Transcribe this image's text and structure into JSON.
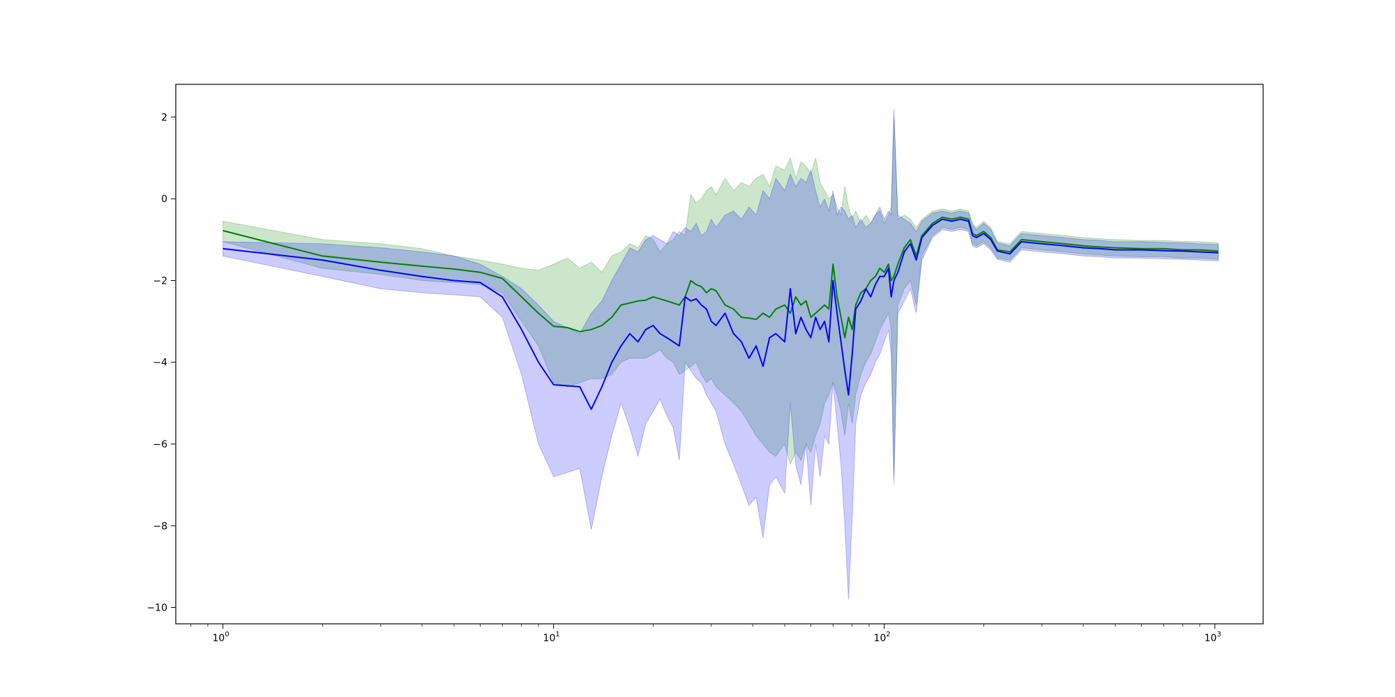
{
  "chart_data": {
    "type": "line",
    "title": "",
    "xlabel": "",
    "ylabel": "",
    "xscale": "log",
    "xlim": [
      0.72,
      1400
    ],
    "ylim": [
      -10.4,
      2.8
    ],
    "grid": false,
    "legend": "none",
    "x_ticks": [
      {
        "value": 1,
        "base": "10",
        "exp": "0"
      },
      {
        "value": 10,
        "base": "10",
        "exp": "1"
      },
      {
        "value": 100,
        "base": "10",
        "exp": "2"
      },
      {
        "value": 1000,
        "base": "10",
        "exp": "3"
      }
    ],
    "y_ticks": [
      {
        "value": 2,
        "label": "2"
      },
      {
        "value": 0,
        "label": "0"
      },
      {
        "value": -2,
        "label": "−2"
      },
      {
        "value": -4,
        "label": "−4"
      },
      {
        "value": -6,
        "label": "−6"
      },
      {
        "value": -8,
        "label": "−8"
      },
      {
        "value": -10,
        "label": "−10"
      }
    ],
    "series": [
      {
        "color": "#008000",
        "band_color": "#008000",
        "band_opacity": 0.2,
        "points": [
          [
            1,
            -0.78,
            -0.55,
            -1.05
          ],
          [
            2,
            -1.4,
            -1.0,
            -1.7
          ],
          [
            3,
            -1.55,
            -1.1,
            -1.85
          ],
          [
            4,
            -1.65,
            -1.22,
            -2.0
          ],
          [
            5,
            -1.72,
            -1.4,
            -2.05
          ],
          [
            6,
            -1.8,
            -1.5,
            -2.1
          ],
          [
            7,
            -1.95,
            -1.6,
            -2.3
          ],
          [
            8,
            -2.4,
            -1.7,
            -3.0
          ],
          [
            9,
            -2.8,
            -1.75,
            -3.6
          ],
          [
            10,
            -3.12,
            -1.6,
            -4.5
          ],
          [
            11,
            -3.15,
            -1.45,
            -4.6
          ],
          [
            12,
            -3.25,
            -1.7,
            -4.5
          ],
          [
            13,
            -3.2,
            -1.55,
            -4.4
          ],
          [
            14,
            -3.1,
            -1.8,
            -4.4
          ],
          [
            15,
            -2.9,
            -1.4,
            -4.3
          ],
          [
            16,
            -2.6,
            -1.3,
            -4.0
          ],
          [
            17,
            -2.55,
            -1.1,
            -3.9
          ],
          [
            18,
            -2.5,
            -1.2,
            -3.9
          ],
          [
            19,
            -2.48,
            -0.9,
            -3.9
          ],
          [
            20,
            -2.4,
            -1.0,
            -3.8
          ],
          [
            21,
            -2.45,
            -1.3,
            -3.7
          ],
          [
            22,
            -2.5,
            -1.1,
            -3.9
          ],
          [
            23,
            -2.55,
            -1.0,
            -4.0
          ],
          [
            24,
            -2.6,
            -0.8,
            -4.3
          ],
          [
            25,
            -2.4,
            -0.9,
            -4.2
          ],
          [
            26,
            -2.0,
            0.1,
            -4.1
          ],
          [
            27,
            -2.1,
            -0.1,
            -4.0
          ],
          [
            28,
            -2.15,
            0.0,
            -4.3
          ],
          [
            29,
            -2.3,
            0.2,
            -4.5
          ],
          [
            30,
            -2.2,
            0.3,
            -4.4
          ],
          [
            31,
            -2.25,
            0.1,
            -4.6
          ],
          [
            33,
            -2.6,
            0.5,
            -4.8
          ],
          [
            35,
            -2.7,
            0.2,
            -5.0
          ],
          [
            37,
            -2.9,
            0.4,
            -5.2
          ],
          [
            39,
            -2.92,
            0.3,
            -5.5
          ],
          [
            41,
            -2.95,
            0.5,
            -5.8
          ],
          [
            43,
            -2.8,
            0.6,
            -6.0
          ],
          [
            45,
            -2.9,
            0.3,
            -6.2
          ],
          [
            47,
            -2.7,
            0.8,
            -6.3
          ],
          [
            50,
            -2.6,
            0.7,
            -6.0
          ],
          [
            52,
            -2.8,
            1.0,
            -6.5
          ],
          [
            54,
            -2.4,
            0.5,
            -6.2
          ],
          [
            56,
            -2.6,
            0.9,
            -6.4
          ],
          [
            58,
            -2.5,
            0.8,
            -6.0
          ],
          [
            60,
            -2.9,
            0.6,
            -6.2
          ],
          [
            62,
            -2.8,
            1.0,
            -5.8
          ],
          [
            64,
            -2.7,
            0.4,
            -5.5
          ],
          [
            66,
            -2.6,
            0.2,
            -5.0
          ],
          [
            68,
            -2.7,
            0.0,
            -4.8
          ],
          [
            70,
            -1.6,
            0.1,
            -4.5
          ],
          [
            72,
            -2.4,
            -0.2,
            -4.8
          ],
          [
            74,
            -2.9,
            -0.4,
            -5.2
          ],
          [
            76,
            -3.4,
            0.3,
            -5.8
          ],
          [
            78,
            -2.9,
            -0.2,
            -5.0
          ],
          [
            80,
            -3.2,
            -0.5,
            -5.5
          ],
          [
            82,
            -2.6,
            -0.3,
            -4.8
          ],
          [
            85,
            -2.3,
            -0.6,
            -4.3
          ],
          [
            88,
            -2.2,
            -0.4,
            -4.0
          ],
          [
            91,
            -2.0,
            -0.6,
            -3.8
          ],
          [
            94,
            -1.9,
            -0.4,
            -3.5
          ],
          [
            97,
            -1.7,
            -0.3,
            -3.2
          ],
          [
            100,
            -1.8,
            -0.6,
            -3.0
          ],
          [
            103,
            -1.6,
            -0.4,
            -2.8
          ],
          [
            105,
            -2.0,
            -0.2,
            -3.2
          ],
          [
            107,
            -1.9,
            2.0,
            -6.8
          ],
          [
            110,
            -1.6,
            -0.5,
            -2.6
          ],
          [
            115,
            -1.2,
            -0.4,
            -2.2
          ],
          [
            120,
            -1.0,
            -0.5,
            -2.0
          ],
          [
            125,
            -1.4,
            -0.7,
            -2.6
          ],
          [
            130,
            -0.9,
            -0.5,
            -1.4
          ],
          [
            140,
            -0.6,
            -0.3,
            -0.9
          ],
          [
            150,
            -0.45,
            -0.25,
            -0.7
          ],
          [
            160,
            -0.5,
            -0.3,
            -0.75
          ],
          [
            170,
            -0.45,
            -0.25,
            -0.7
          ],
          [
            180,
            -0.5,
            -0.3,
            -0.75
          ],
          [
            185,
            -0.85,
            -0.6,
            -1.1
          ],
          [
            190,
            -0.9,
            -0.7,
            -1.15
          ],
          [
            200,
            -0.8,
            -0.55,
            -1.05
          ],
          [
            210,
            -0.95,
            -0.7,
            -1.2
          ],
          [
            220,
            -1.25,
            -1.05,
            -1.45
          ],
          [
            240,
            -1.3,
            -1.1,
            -1.5
          ],
          [
            260,
            -1.0,
            -0.8,
            -1.2
          ],
          [
            300,
            -1.05,
            -0.85,
            -1.25
          ],
          [
            350,
            -1.1,
            -0.9,
            -1.3
          ],
          [
            400,
            -1.15,
            -0.95,
            -1.35
          ],
          [
            450,
            -1.18,
            -0.98,
            -1.38
          ],
          [
            500,
            -1.2,
            -1.0,
            -1.4
          ],
          [
            600,
            -1.22,
            -1.02,
            -1.42
          ],
          [
            700,
            -1.22,
            -1.02,
            -1.42
          ],
          [
            800,
            -1.25,
            -1.05,
            -1.45
          ],
          [
            900,
            -1.25,
            -1.05,
            -1.45
          ],
          [
            1024,
            -1.28,
            -1.08,
            -1.48
          ]
        ]
      },
      {
        "color": "#0000ff",
        "band_color": "#0000ff",
        "band_opacity": 0.2,
        "points": [
          [
            1,
            -1.22,
            -1.05,
            -1.4
          ],
          [
            2,
            -1.5,
            -1.1,
            -1.9
          ],
          [
            3,
            -1.75,
            -1.2,
            -2.2
          ],
          [
            4,
            -1.9,
            -1.3,
            -2.3
          ],
          [
            5,
            -2.0,
            -1.4,
            -2.35
          ],
          [
            6,
            -2.05,
            -1.6,
            -2.4
          ],
          [
            7,
            -2.4,
            -1.9,
            -2.9
          ],
          [
            8,
            -3.2,
            -2.2,
            -4.3
          ],
          [
            9,
            -4.0,
            -2.6,
            -6.0
          ],
          [
            10,
            -4.55,
            -3.0,
            -6.8
          ],
          [
            12,
            -4.6,
            -3.3,
            -6.6
          ],
          [
            13,
            -5.15,
            -2.8,
            -8.1
          ],
          [
            14,
            -4.6,
            -2.5,
            -6.8
          ],
          [
            15,
            -4.0,
            -2.0,
            -5.8
          ],
          [
            16,
            -3.6,
            -1.6,
            -5.0
          ],
          [
            17,
            -3.3,
            -1.2,
            -5.6
          ],
          [
            18,
            -3.5,
            -1.3,
            -6.3
          ],
          [
            19,
            -3.2,
            -1.0,
            -5.5
          ],
          [
            20,
            -3.1,
            -0.9,
            -5.2
          ],
          [
            21,
            -3.3,
            -1.0,
            -4.9
          ],
          [
            22,
            -3.4,
            -1.1,
            -5.3
          ],
          [
            23,
            -3.5,
            -0.8,
            -5.6
          ],
          [
            24,
            -3.6,
            -0.9,
            -6.4
          ],
          [
            25,
            -2.4,
            -0.7,
            -4.0
          ],
          [
            26,
            -2.5,
            -0.8,
            -4.2
          ],
          [
            27,
            -2.45,
            -0.6,
            -4.4
          ],
          [
            28,
            -2.6,
            -0.9,
            -4.5
          ],
          [
            29,
            -2.7,
            -0.8,
            -4.8
          ],
          [
            30,
            -3.0,
            -0.5,
            -5.0
          ],
          [
            31,
            -3.1,
            -0.7,
            -5.2
          ],
          [
            33,
            -2.8,
            -0.4,
            -6.0
          ],
          [
            35,
            -3.3,
            -0.3,
            -6.5
          ],
          [
            37,
            -3.5,
            -0.5,
            -7.0
          ],
          [
            39,
            -3.9,
            -0.2,
            -7.5
          ],
          [
            41,
            -3.6,
            -0.4,
            -7.3
          ],
          [
            43,
            -4.1,
            0.2,
            -8.3
          ],
          [
            45,
            -3.4,
            0.0,
            -7.0
          ],
          [
            47,
            -3.3,
            0.5,
            -6.8
          ],
          [
            50,
            -3.5,
            0.2,
            -7.2
          ],
          [
            52,
            -2.2,
            0.6,
            -5.0
          ],
          [
            54,
            -3.3,
            0.3,
            -6.5
          ],
          [
            56,
            -2.9,
            0.5,
            -7.0
          ],
          [
            58,
            -3.2,
            0.4,
            -6.0
          ],
          [
            60,
            -3.4,
            0.7,
            -7.5
          ],
          [
            62,
            -2.9,
            0.2,
            -6.0
          ],
          [
            64,
            -3.2,
            -0.2,
            -6.8
          ],
          [
            66,
            -3.0,
            0.0,
            -5.8
          ],
          [
            68,
            -3.5,
            -0.3,
            -6.0
          ],
          [
            70,
            -2.0,
            0.2,
            -4.5
          ],
          [
            72,
            -2.8,
            -0.4,
            -5.5
          ],
          [
            74,
            -3.5,
            -0.2,
            -6.5
          ],
          [
            76,
            -4.2,
            -0.3,
            -8.0
          ],
          [
            78,
            -4.8,
            -0.5,
            -9.8
          ],
          [
            80,
            -3.8,
            -0.4,
            -7.8
          ],
          [
            82,
            -2.7,
            -0.7,
            -5.5
          ],
          [
            85,
            -2.5,
            -0.5,
            -4.8
          ],
          [
            88,
            -2.2,
            -0.7,
            -4.5
          ],
          [
            91,
            -2.4,
            -0.6,
            -4.3
          ],
          [
            94,
            -2.1,
            -0.4,
            -4.0
          ],
          [
            97,
            -1.9,
            -0.2,
            -3.8
          ],
          [
            100,
            -1.9,
            -0.5,
            -3.5
          ],
          [
            103,
            -1.7,
            -0.3,
            -3.2
          ],
          [
            105,
            -2.4,
            -0.4,
            -3.8
          ],
          [
            107,
            -2.0,
            2.2,
            -7.0
          ],
          [
            110,
            -1.8,
            -0.4,
            -2.8
          ],
          [
            115,
            -1.3,
            -0.5,
            -2.5
          ],
          [
            120,
            -1.1,
            -0.6,
            -2.2
          ],
          [
            125,
            -1.5,
            -0.8,
            -2.8
          ],
          [
            130,
            -0.95,
            -0.55,
            -1.5
          ],
          [
            140,
            -0.65,
            -0.35,
            -0.95
          ],
          [
            150,
            -0.5,
            -0.3,
            -0.75
          ],
          [
            160,
            -0.55,
            -0.35,
            -0.8
          ],
          [
            170,
            -0.5,
            -0.3,
            -0.75
          ],
          [
            180,
            -0.55,
            -0.35,
            -0.8
          ],
          [
            185,
            -0.9,
            -0.65,
            -1.15
          ],
          [
            190,
            -0.95,
            -0.75,
            -1.2
          ],
          [
            200,
            -0.85,
            -0.6,
            -1.1
          ],
          [
            210,
            -1.0,
            -0.75,
            -1.25
          ],
          [
            220,
            -1.28,
            -1.08,
            -1.48
          ],
          [
            240,
            -1.35,
            -1.15,
            -1.55
          ],
          [
            260,
            -1.05,
            -0.85,
            -1.25
          ],
          [
            300,
            -1.1,
            -0.9,
            -1.3
          ],
          [
            350,
            -1.15,
            -0.95,
            -1.35
          ],
          [
            400,
            -1.2,
            -1.0,
            -1.4
          ],
          [
            450,
            -1.22,
            -1.02,
            -1.42
          ],
          [
            500,
            -1.25,
            -1.05,
            -1.45
          ],
          [
            600,
            -1.25,
            -1.05,
            -1.45
          ],
          [
            700,
            -1.27,
            -1.07,
            -1.47
          ],
          [
            800,
            -1.28,
            -1.08,
            -1.48
          ],
          [
            900,
            -1.3,
            -1.1,
            -1.5
          ],
          [
            1024,
            -1.32,
            -1.12,
            -1.52
          ]
        ]
      }
    ]
  }
}
